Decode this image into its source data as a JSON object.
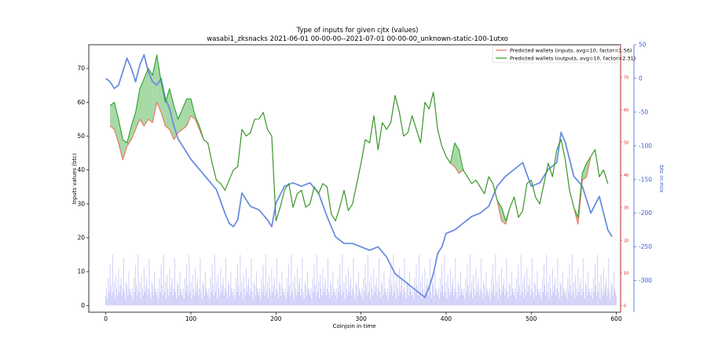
{
  "chart_data": {
    "type": "line",
    "title": "Type of inputs for given cjtx (values)",
    "subtitle": "wasabi1_zksnacks 2021-06-01 00-00-00--2021-07-01 00-00-00_unknown-static-100-1utxo",
    "xlabel": "Coinjoin in time",
    "ylabel": "Inputs values (btc)",
    "y2label": "btc in mix",
    "xlim": [
      -20,
      605
    ],
    "ylim": [
      -2,
      77
    ],
    "y2lim": [
      -347,
      50
    ],
    "y3lim": [
      -2,
      80
    ],
    "x_ticks": [
      0,
      100,
      200,
      300,
      400,
      500,
      600
    ],
    "y_ticks": [
      0,
      10,
      20,
      30,
      40,
      50,
      60,
      70
    ],
    "y2_ticks": [
      50,
      0,
      -50,
      -100,
      -150,
      -200,
      -250,
      -300
    ],
    "y3_ticks": [
      0,
      10,
      20,
      30,
      40,
      50,
      60,
      70
    ],
    "grid": false,
    "legend_position": "top-right",
    "colors": {
      "inputs": "#e8735a",
      "outputs": "#2ca02c",
      "mix": "#6b8de0",
      "bars": "#8c8cf0",
      "fill_red": "#f08080",
      "fill_green": "#6cbf6c"
    },
    "series": [
      {
        "name": "Predicted wallets (inputs, avg=10, factor=1.56)",
        "x": [
          5,
          10,
          15,
          20,
          25,
          30,
          35,
          40,
          45,
          50,
          55,
          60,
          65,
          70,
          75,
          80,
          85,
          90,
          95,
          100,
          105,
          110,
          115,
          120,
          125,
          130,
          135,
          140,
          145,
          150,
          155,
          160,
          165,
          170,
          175,
          180,
          185,
          190,
          195,
          200,
          205,
          210,
          215,
          220,
          225,
          230,
          235,
          240,
          245,
          250,
          255,
          260,
          265,
          270,
          275,
          280,
          285,
          290,
          295,
          300,
          305,
          310,
          315,
          320,
          325,
          330,
          335,
          340,
          345,
          350,
          355,
          360,
          365,
          370,
          375,
          380,
          385,
          390,
          395,
          400,
          405,
          410,
          415,
          420,
          425,
          430,
          435,
          440,
          445,
          450,
          455,
          460,
          465,
          470,
          475,
          480,
          485,
          490,
          495,
          500,
          505,
          510,
          515,
          520,
          525,
          530,
          535,
          540,
          545,
          550,
          555,
          560,
          565,
          570,
          575,
          580,
          585,
          590
        ],
        "values": [
          53,
          52,
          48,
          43,
          47,
          49,
          52,
          55,
          53,
          55,
          54,
          60,
          57,
          53,
          52,
          49,
          51,
          52,
          53,
          56,
          55,
          52,
          49,
          48,
          42,
          37,
          36,
          34,
          37,
          40,
          41,
          52,
          50,
          51,
          55,
          55,
          57,
          52,
          50,
          25,
          29,
          34,
          36,
          29,
          33,
          34,
          29,
          30,
          35,
          33,
          36,
          35,
          27,
          25,
          29,
          34,
          28,
          30,
          36,
          42,
          49,
          48,
          56,
          46,
          54,
          52,
          54,
          62,
          57,
          50,
          51,
          56,
          52,
          48,
          60,
          58,
          63,
          52,
          47,
          44,
          42,
          41,
          39,
          40,
          38,
          36,
          37,
          35,
          33,
          38,
          36,
          31,
          25,
          24,
          29,
          32,
          26,
          28,
          36,
          37,
          32,
          30,
          36,
          42,
          38,
          46,
          49,
          43,
          34,
          29,
          24,
          37,
          38,
          44,
          46,
          38,
          40,
          36
        ]
      },
      {
        "name": "Predicted wallets (outputs, avg=10, factor=2.31)",
        "x": [
          5,
          10,
          15,
          20,
          25,
          30,
          35,
          40,
          45,
          50,
          55,
          60,
          65,
          70,
          75,
          80,
          85,
          90,
          95,
          100,
          105,
          110,
          115,
          120,
          125,
          130,
          135,
          140,
          145,
          150,
          155,
          160,
          165,
          170,
          175,
          180,
          185,
          190,
          195,
          200,
          205,
          210,
          215,
          220,
          225,
          230,
          235,
          240,
          245,
          250,
          255,
          260,
          265,
          270,
          275,
          280,
          285,
          290,
          295,
          300,
          305,
          310,
          315,
          320,
          325,
          330,
          335,
          340,
          345,
          350,
          355,
          360,
          365,
          370,
          375,
          380,
          385,
          390,
          395,
          400,
          405,
          410,
          415,
          420,
          425,
          430,
          435,
          440,
          445,
          450,
          455,
          460,
          465,
          470,
          475,
          480,
          485,
          490,
          495,
          500,
          505,
          510,
          515,
          520,
          525,
          530,
          535,
          540,
          545,
          550,
          555,
          560,
          565,
          570,
          575,
          580,
          585,
          590
        ],
        "values": [
          59,
          60,
          55,
          49,
          48,
          53,
          57,
          64,
          67,
          70,
          68,
          74,
          66,
          60,
          64,
          59,
          55,
          58,
          61,
          61,
          56,
          53,
          49,
          48,
          42,
          37,
          36,
          34,
          37,
          40,
          41,
          52,
          50,
          51,
          55,
          55,
          57,
          52,
          50,
          25,
          29,
          34,
          36,
          29,
          33,
          34,
          29,
          30,
          35,
          33,
          36,
          35,
          27,
          25,
          29,
          34,
          28,
          30,
          36,
          42,
          49,
          48,
          56,
          46,
          54,
          52,
          54,
          62,
          57,
          50,
          51,
          56,
          52,
          48,
          60,
          58,
          63,
          52,
          47,
          44,
          42,
          48,
          46,
          40,
          38,
          36,
          37,
          35,
          33,
          38,
          36,
          31,
          29,
          25,
          29,
          32,
          26,
          28,
          36,
          37,
          32,
          30,
          36,
          42,
          38,
          46,
          49,
          43,
          34,
          29,
          26,
          39,
          42,
          44,
          46,
          38,
          40,
          36
        ]
      },
      {
        "name": "btc in mix",
        "x": [
          0,
          5,
          10,
          15,
          20,
          25,
          30,
          35,
          40,
          45,
          50,
          55,
          60,
          65,
          70,
          75,
          80,
          85,
          90,
          95,
          100,
          110,
          120,
          130,
          140,
          145,
          150,
          155,
          160,
          165,
          170,
          180,
          190,
          195,
          200,
          210,
          220,
          230,
          240,
          250,
          260,
          270,
          280,
          290,
          300,
          310,
          320,
          330,
          340,
          350,
          360,
          370,
          375,
          380,
          385,
          390,
          395,
          400,
          410,
          420,
          430,
          440,
          450,
          460,
          470,
          480,
          490,
          500,
          510,
          520,
          530,
          535,
          540,
          550,
          560,
          570,
          580,
          590,
          595
        ],
        "values": [
          0,
          -5,
          -15,
          -10,
          10,
          30,
          15,
          -5,
          20,
          35,
          10,
          -5,
          -10,
          0,
          -30,
          -45,
          -70,
          -90,
          -100,
          -110,
          -120,
          -135,
          -150,
          -165,
          -200,
          -215,
          -220,
          -210,
          -170,
          -180,
          -190,
          -195,
          -210,
          -220,
          -185,
          -160,
          -155,
          -160,
          -155,
          -170,
          -205,
          -235,
          -245,
          -245,
          -250,
          -255,
          -250,
          -265,
          -290,
          -300,
          -310,
          -320,
          -325,
          -310,
          -290,
          -260,
          -250,
          -230,
          -225,
          -215,
          -205,
          -200,
          -190,
          -160,
          -145,
          -135,
          -125,
          -160,
          -155,
          -135,
          -125,
          -80,
          -95,
          -145,
          -160,
          -200,
          -175,
          -225,
          -235
        ]
      }
    ],
    "bars": {
      "x_start": 0,
      "x_end": 600,
      "approx_height_pattern": [
        3,
        5,
        2,
        8,
        4,
        12,
        6,
        3,
        15,
        4,
        7,
        2,
        9,
        5,
        3,
        11,
        4,
        6,
        8,
        3,
        5,
        14,
        4,
        2,
        7,
        6,
        3,
        10,
        5,
        4
      ]
    },
    "y3_axis_color": "#d62728"
  }
}
